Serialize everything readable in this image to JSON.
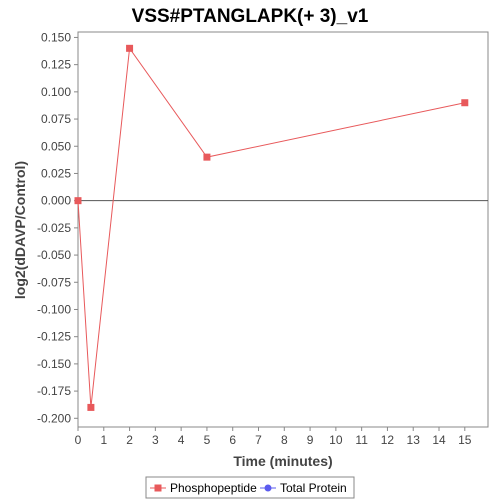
{
  "chart_data": {
    "type": "line",
    "title": "VSS#PTANGLAPK(+ 3)_v1",
    "xlabel": "Time (minutes)",
    "ylabel": "log2(dDAVP/Control)",
    "xlim": [
      0,
      15.9
    ],
    "ylim": [
      -0.208,
      0.155
    ],
    "x_ticks": [
      0,
      1,
      2,
      3,
      4,
      5,
      6,
      7,
      8,
      9,
      10,
      11,
      12,
      13,
      14,
      15
    ],
    "x_tick_labels": [
      "0",
      "1",
      "2",
      "3",
      "4",
      "5",
      "6",
      "7",
      "8",
      "9",
      "10",
      "11",
      "12",
      "13",
      "14",
      "15"
    ],
    "y_ticks": [
      0.15,
      0.125,
      0.1,
      0.075,
      0.05,
      0.025,
      0,
      -0.025,
      -0.05,
      -0.075,
      -0.1,
      -0.125,
      -0.15,
      -0.175,
      -0.2
    ],
    "y_tick_labels": [
      "0.150",
      "0.125",
      "0.100",
      "0.075",
      "0.050",
      "0.025",
      "0.000",
      "-0.025",
      "-0.050",
      "-0.075",
      "-0.100",
      "-0.125",
      "-0.150",
      "-0.175",
      "-0.200"
    ],
    "grid": false,
    "zero_line": true,
    "legend_position": "bottom",
    "series": [
      {
        "name": "Phosphopeptide",
        "color": "#e8595b",
        "marker": "square",
        "x": [
          0,
          0.5,
          2,
          5,
          15
        ],
        "y": [
          0.0,
          -0.19,
          0.14,
          0.04,
          0.09
        ]
      },
      {
        "name": "Total Protein",
        "color": "#5b5bef",
        "marker": "circle",
        "x": [],
        "y": []
      }
    ]
  }
}
